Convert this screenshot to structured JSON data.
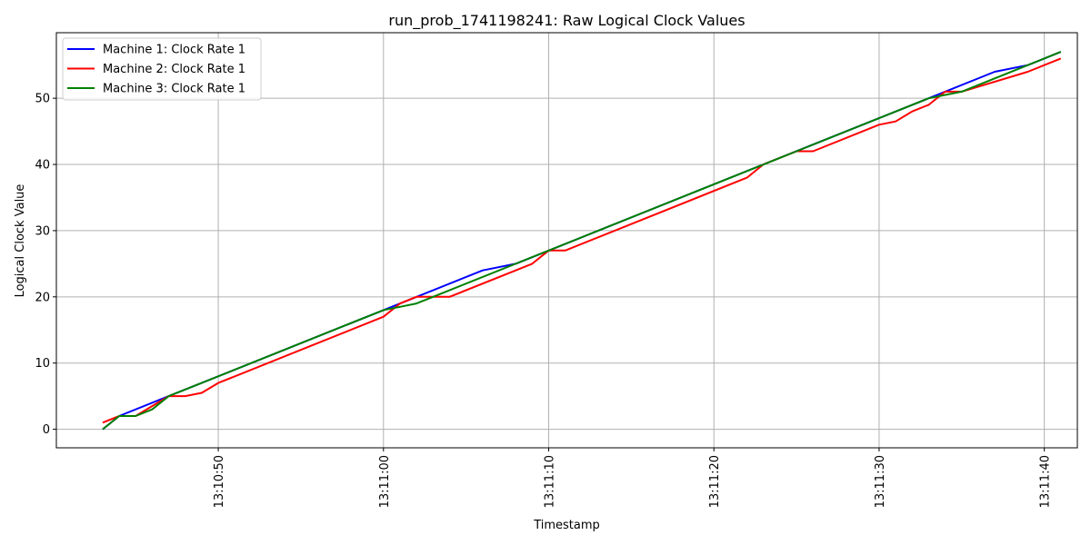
{
  "chart_data": {
    "type": "line",
    "title": "run_prob_1741198241: Raw Logical Clock Values",
    "xlabel": "Timestamp",
    "ylabel": "Logical Clock Value",
    "x_axis": "time (seconds of 13:10:xx / 13:11:xx)",
    "xlim": [
      "13:10:40.2",
      "13:11:42.0"
    ],
    "ylim": [
      -2.8,
      59.9
    ],
    "x_ticks": [
      "13:10:50",
      "13:11:00",
      "13:11:10",
      "13:11:20",
      "13:11:30",
      "13:11:40"
    ],
    "y_ticks": [
      0,
      10,
      20,
      30,
      40,
      50
    ],
    "grid": true,
    "legend_position": "top-left",
    "series": [
      {
        "name": "Machine 1: Clock Rate 1",
        "color": "#0000ff",
        "points": [
          [
            "13:10:43",
            0
          ],
          [
            "13:10:44",
            2
          ],
          [
            "13:10:47",
            5
          ],
          [
            "13:11:00",
            18
          ],
          [
            "13:11:06",
            24
          ],
          [
            "13:11:08",
            25
          ],
          [
            "13:11:23",
            40
          ],
          [
            "13:11:33",
            50
          ],
          [
            "13:11:37",
            54
          ],
          [
            "13:11:39",
            55
          ],
          [
            "13:11:41",
            57
          ]
        ]
      },
      {
        "name": "Machine 2: Clock Rate 1",
        "color": "#ff0000",
        "points": [
          [
            "13:10:43",
            1
          ],
          [
            "13:10:44",
            2
          ],
          [
            "13:10:45",
            2
          ],
          [
            "13:10:47",
            5
          ],
          [
            "13:10:48",
            5
          ],
          [
            "13:10:49",
            5.5
          ],
          [
            "13:10:50",
            7
          ],
          [
            "13:11:00",
            17
          ],
          [
            "13:11:01",
            19
          ],
          [
            "13:11:02",
            20
          ],
          [
            "13:11:04",
            20
          ],
          [
            "13:11:09",
            25
          ],
          [
            "13:11:10",
            27
          ],
          [
            "13:11:11",
            27
          ],
          [
            "13:11:22",
            38
          ],
          [
            "13:11:23",
            40
          ],
          [
            "13:11:25",
            42
          ],
          [
            "13:11:26",
            42
          ],
          [
            "13:11:30",
            46
          ],
          [
            "13:11:31",
            46.5
          ],
          [
            "13:11:32",
            48
          ],
          [
            "13:11:33",
            49
          ],
          [
            "13:11:34",
            51
          ],
          [
            "13:11:35",
            51
          ],
          [
            "13:11:39",
            54
          ],
          [
            "13:11:41",
            56
          ]
        ]
      },
      {
        "name": "Machine 3: Clock Rate 1",
        "color": "#008000",
        "points": [
          [
            "13:10:43",
            0
          ],
          [
            "13:10:44",
            2
          ],
          [
            "13:10:45",
            2
          ],
          [
            "13:10:46",
            3
          ],
          [
            "13:10:47",
            5
          ],
          [
            "13:11:00",
            18
          ],
          [
            "13:11:01",
            18.5
          ],
          [
            "13:11:02",
            19
          ],
          [
            "13:11:03",
            20
          ],
          [
            "13:11:33",
            50
          ],
          [
            "13:11:34",
            50.5
          ],
          [
            "13:11:35",
            51
          ],
          [
            "13:11:39",
            55
          ],
          [
            "13:11:41",
            57
          ]
        ]
      }
    ]
  }
}
